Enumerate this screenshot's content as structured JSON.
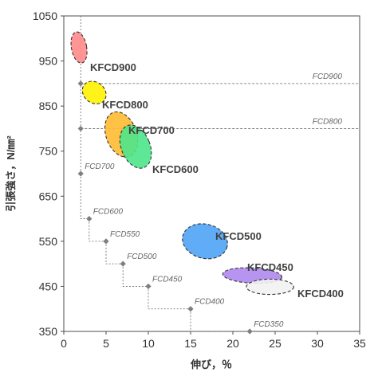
{
  "chart_data": {
    "type": "scatter",
    "xlabel": "伸び，％",
    "ylabel": "引張強さ，N/㎜²",
    "xlim": [
      0,
      35
    ],
    "ylim": [
      350,
      1050
    ],
    "x_ticks": [
      "0",
      "5",
      "10",
      "15",
      "20",
      "25",
      "30",
      "35"
    ],
    "y_ticks": [
      "350",
      "450",
      "550",
      "650",
      "750",
      "850",
      "950",
      "1050"
    ],
    "grid": false,
    "standards": [
      {
        "name": "FCD900",
        "elongation": 2,
        "tensile": 900
      },
      {
        "name": "FCD800",
        "elongation": 2,
        "tensile": 800
      },
      {
        "name": "FCD700",
        "elongation": 2,
        "tensile": 700
      },
      {
        "name": "FCD600",
        "elongation": 3,
        "tensile": 600
      },
      {
        "name": "FCD550",
        "elongation": 5,
        "tensile": 550
      },
      {
        "name": "FCD500",
        "elongation": 7,
        "tensile": 500
      },
      {
        "name": "FCD450",
        "elongation": 10,
        "tensile": 450
      },
      {
        "name": "FCD400",
        "elongation": 15,
        "tensile": 400
      },
      {
        "name": "FCD350",
        "elongation": 22,
        "tensile": 350
      }
    ],
    "grades": [
      {
        "name": "KFCD900",
        "elongation_center": 1.8,
        "tensile_center": 980,
        "elongation_halfwidth": 0.9,
        "tensile_halfwidth": 35,
        "angle": -10,
        "color": "#FF8A8A"
      },
      {
        "name": "KFCD800",
        "elongation_center": 3.6,
        "tensile_center": 880,
        "elongation_halfwidth": 1.5,
        "tensile_halfwidth": 23,
        "angle": 38,
        "color": "#FFF200"
      },
      {
        "name": "KFCD700",
        "elongation_center": 6.8,
        "tensile_center": 787,
        "elongation_halfwidth": 1.8,
        "tensile_halfwidth": 52,
        "angle": -20,
        "color": "#FFBB33"
      },
      {
        "name": "KFCD600",
        "elongation_center": 8.5,
        "tensile_center": 760,
        "elongation_halfwidth": 1.7,
        "tensile_halfwidth": 50,
        "angle": -22,
        "color": "#4DE58A"
      },
      {
        "name": "KFCD500",
        "elongation_center": 16.7,
        "tensile_center": 550,
        "elongation_halfwidth": 2.7,
        "tensile_halfwidth": 38,
        "angle": 14,
        "color": "#4FA3F5"
      },
      {
        "name": "KFCD450",
        "elongation_center": 22.3,
        "tensile_center": 474,
        "elongation_halfwidth": 3.5,
        "tensile_halfwidth": 17,
        "angle": 3,
        "color": "#B088F0"
      },
      {
        "name": "KFCD400",
        "elongation_center": 24.4,
        "tensile_center": 449,
        "elongation_halfwidth": 2.8,
        "tensile_halfwidth": 17,
        "angle": 0,
        "color": "#F2F2F2"
      }
    ]
  }
}
